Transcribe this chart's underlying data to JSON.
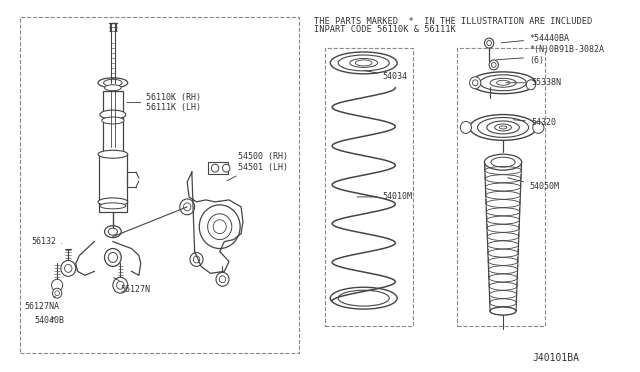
{
  "bg_color": "#ffffff",
  "line_color": "#444444",
  "text_color": "#333333",
  "title_note_line1": "THE PARTS MARKED  *  IN THE ILLUSTRATION ARE INCLUDED",
  "title_note_line2": "INPART CODE 56110K & 56111K",
  "footer": "J40101BA",
  "label_fontsize": 6.0,
  "header_fontsize": 6.2
}
